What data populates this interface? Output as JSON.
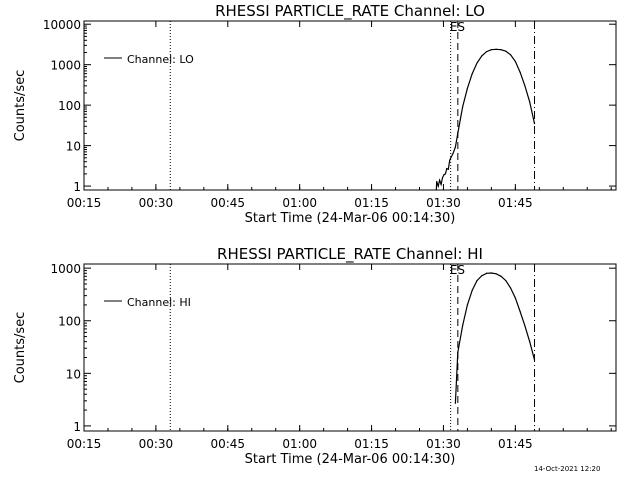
{
  "footer": {
    "timestamp": "14-Oct-2021 12:20"
  },
  "chart_data": [
    {
      "type": "line",
      "title": "RHESSI PARTICLE_RATE Channel: LO",
      "xlabel": "Start Time (24-Mar-06 00:14:30)",
      "ylabel": "Counts/sec",
      "scale_y": "log",
      "xlim_min": [
        15,
        126
      ],
      "ylim": [
        0.8,
        12000
      ],
      "x_ticks": [
        "00:15",
        "00:30",
        "00:45",
        "01:00",
        "01:15",
        "01:30",
        "01:45"
      ],
      "x_tick_min": [
        15,
        30,
        45,
        60,
        75,
        90,
        105
      ],
      "y_ticks": [
        "1",
        "10",
        "100",
        "1000",
        "10000"
      ],
      "y_tick_vals": [
        1,
        10,
        100,
        1000,
        10000
      ],
      "legend": {
        "label": "Channel: LO",
        "position": "top-left"
      },
      "markers": [
        {
          "label": "",
          "x_min": 33,
          "style": "dotted"
        },
        {
          "label": "",
          "x_min": 91.5,
          "style": "dotted"
        },
        {
          "label": "ES",
          "x_min": 93,
          "style": "dashed"
        },
        {
          "label": "",
          "x_min": 109,
          "style": "dashdot"
        }
      ],
      "series": [
        {
          "name": "Channel: LO",
          "x_min": [
            88.5,
            88.6,
            88.9,
            89.2,
            89.5,
            89.8,
            90.1,
            90.4,
            90.7,
            91.0,
            91.3,
            91.6,
            92.0,
            92.5,
            93.0,
            94.0,
            95.0,
            96.0,
            97.0,
            98.0,
            99.0,
            100.0,
            101.0,
            102.0,
            103.0,
            104.0,
            105.0,
            106.0,
            107.0,
            108.0,
            109.0
          ],
          "y": [
            0.8,
            1.3,
            1.0,
            1.4,
            1.1,
            1.6,
            1.9,
            2.0,
            2.7,
            2.6,
            4.3,
            5.2,
            6.4,
            9.2,
            20,
            90,
            260,
            600,
            1100,
            1650,
            2100,
            2350,
            2400,
            2350,
            2150,
            1750,
            1200,
            650,
            300,
            120,
            35
          ]
        }
      ]
    },
    {
      "type": "line",
      "title": "RHESSI PARTICLE_RATE Channel: HI",
      "xlabel": "Start Time (24-Mar-06 00:14:30)",
      "ylabel": "Counts/sec",
      "scale_y": "log",
      "xlim_min": [
        15,
        126
      ],
      "ylim": [
        0.8,
        1200
      ],
      "x_ticks": [
        "00:15",
        "00:30",
        "00:45",
        "01:00",
        "01:15",
        "01:30",
        "01:45"
      ],
      "x_tick_min": [
        15,
        30,
        45,
        60,
        75,
        90,
        105
      ],
      "y_ticks": [
        "1",
        "10",
        "100",
        "1000"
      ],
      "y_tick_vals": [
        1,
        10,
        100,
        1000
      ],
      "legend": {
        "label": "Channel: HI",
        "position": "top-left"
      },
      "markers": [
        {
          "label": "",
          "x_min": 33,
          "style": "dotted"
        },
        {
          "label": "",
          "x_min": 91.5,
          "style": "dotted"
        },
        {
          "label": "ES",
          "x_min": 93,
          "style": "dashed"
        },
        {
          "label": "",
          "x_min": 109,
          "style": "dashdot"
        }
      ],
      "series": [
        {
          "name": "Channel: HI",
          "x_min": [
            92.5,
            93.0,
            94.0,
            95.0,
            96.0,
            97.0,
            98.0,
            99.0,
            100.0,
            101.0,
            102.0,
            103.0,
            104.0,
            105.0,
            106.0,
            107.0,
            108.0,
            109.0
          ],
          "y": [
            2.7,
            25,
            80,
            200,
            380,
            580,
            720,
            800,
            810,
            780,
            700,
            580,
            420,
            270,
            150,
            80,
            40,
            18
          ]
        }
      ]
    }
  ]
}
